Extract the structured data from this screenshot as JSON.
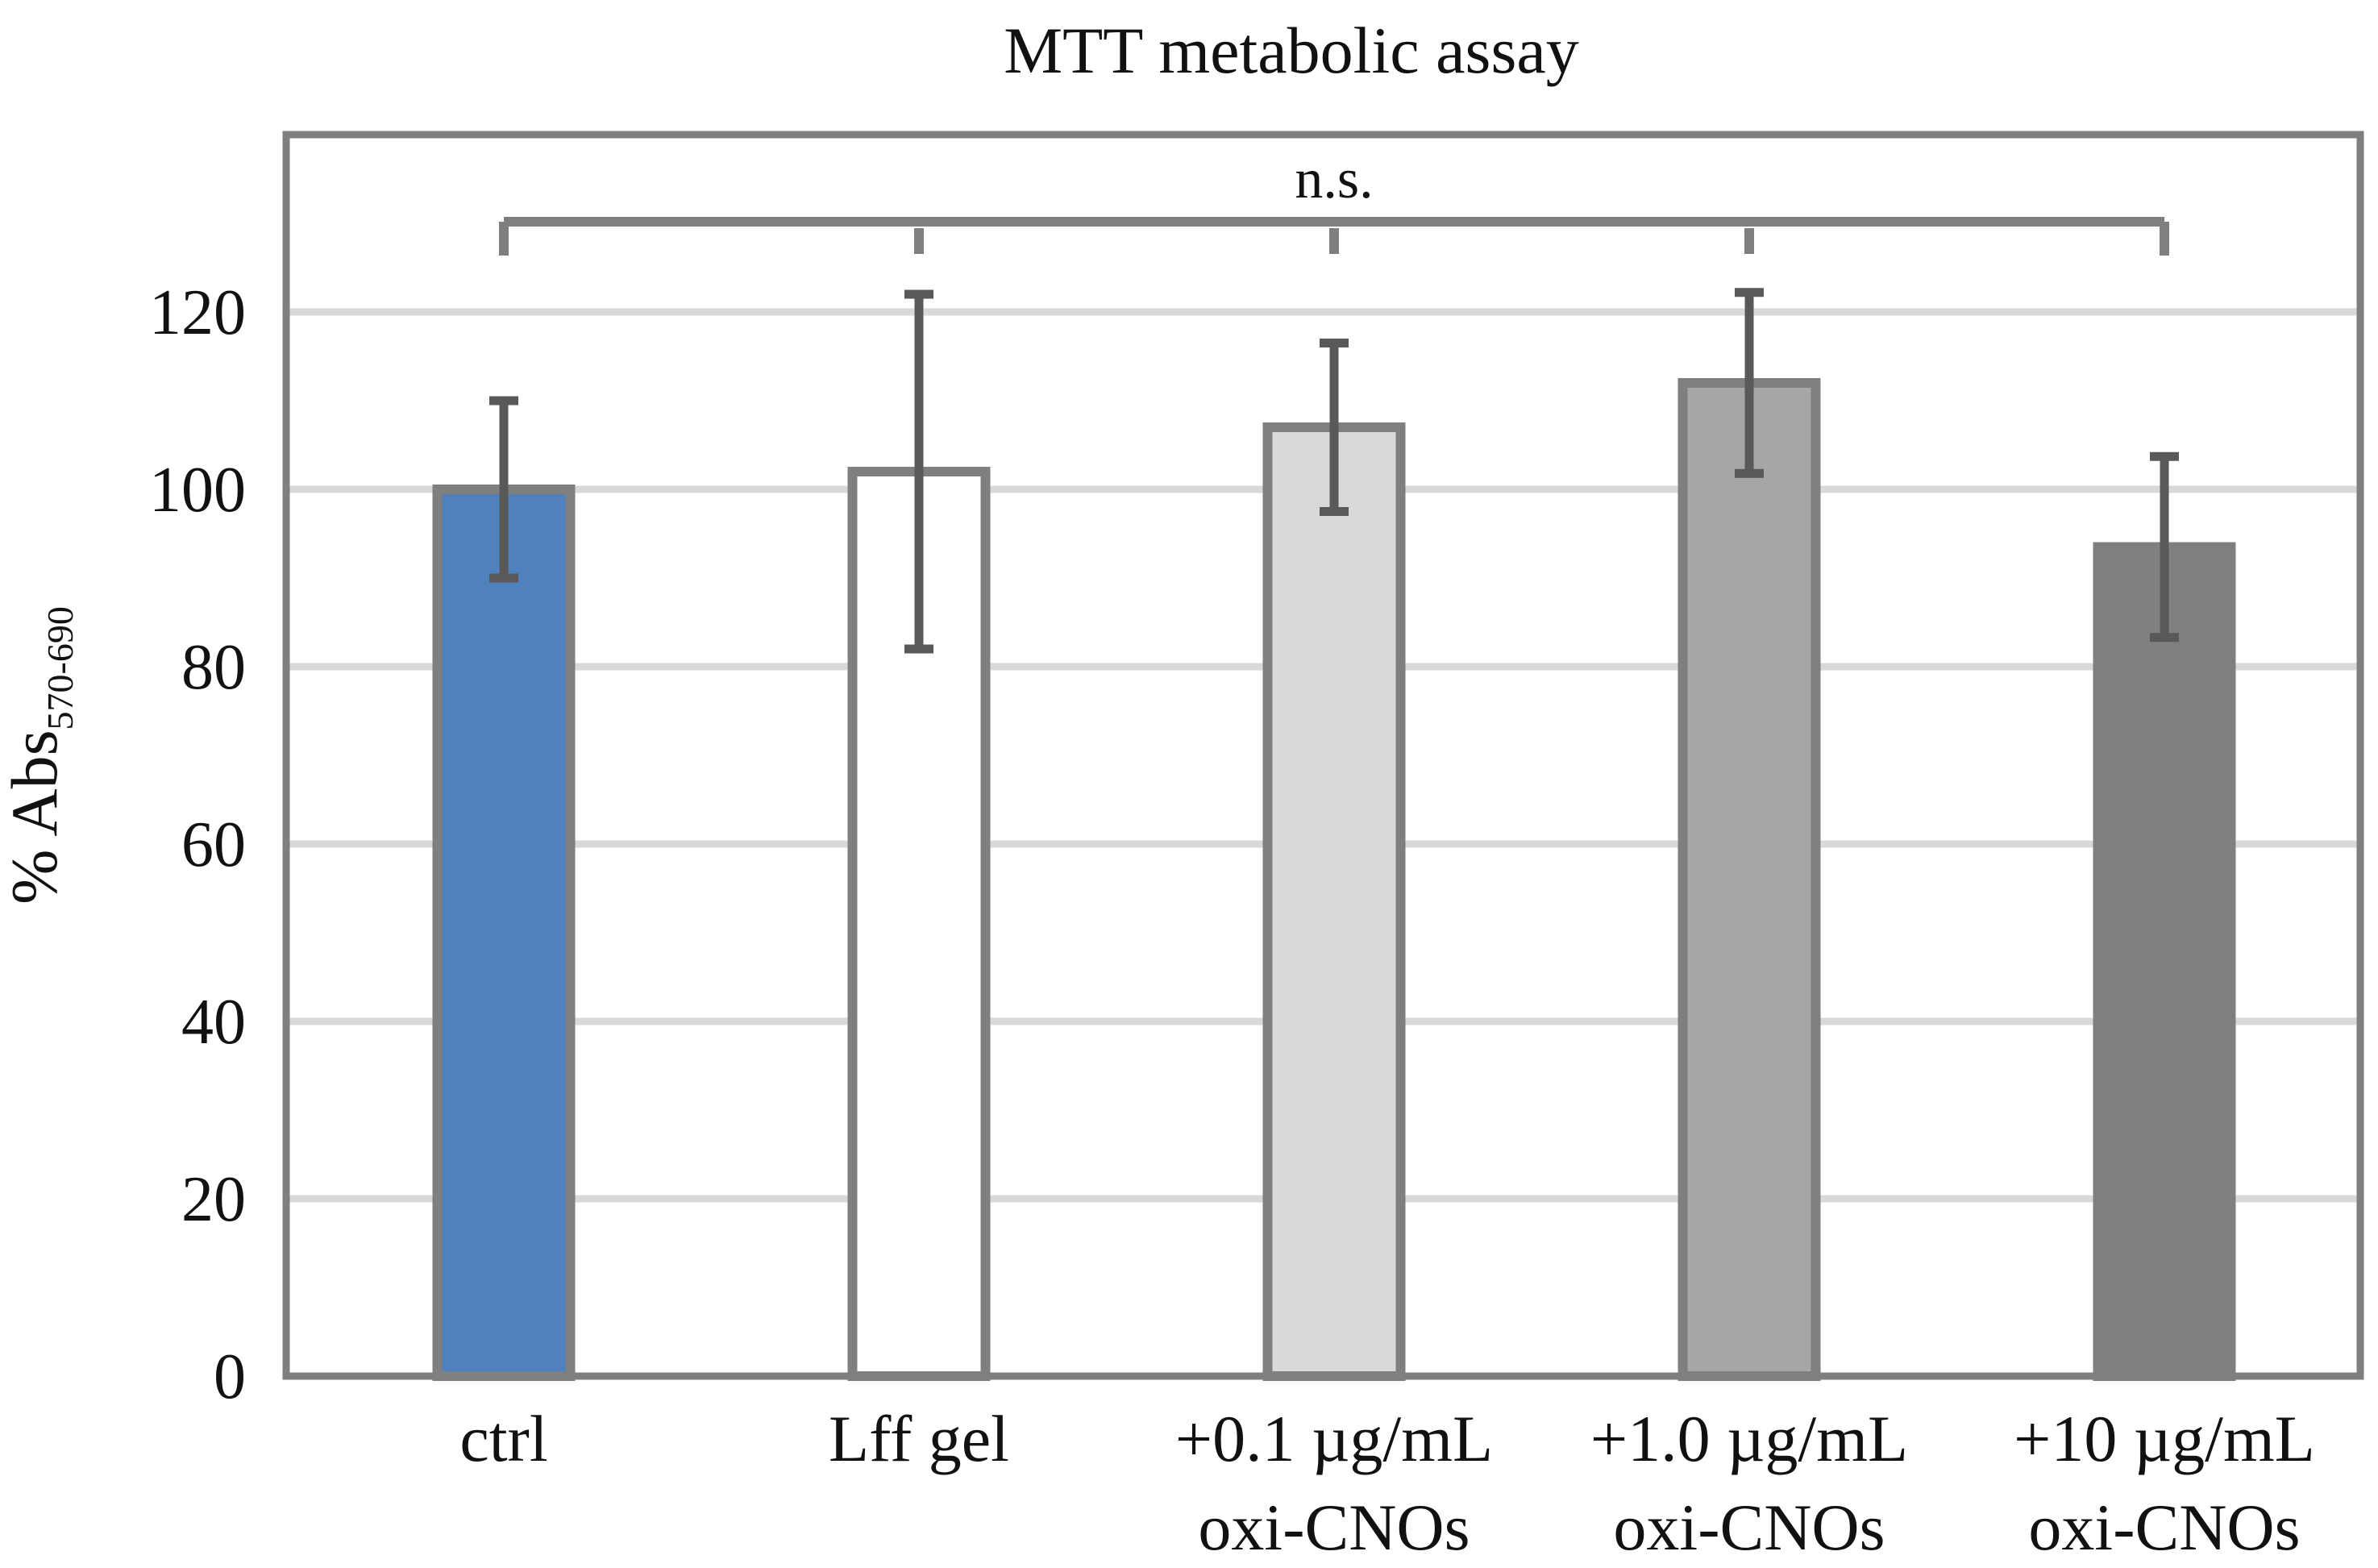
{
  "chart_data": {
    "type": "bar",
    "title": "MTT metabolic assay",
    "ylabel_main": "% Abs",
    "ylabel_sub": "570-690",
    "xlabel": "",
    "ylim": [
      0,
      135
    ],
    "yticks": [
      0,
      20,
      40,
      60,
      80,
      100,
      120
    ],
    "grid": true,
    "categories": [
      {
        "line1": "ctrl",
        "line2": ""
      },
      {
        "line1": "Lff gel",
        "line2": ""
      },
      {
        "line1": "+0.1 µg/mL",
        "line2": "oxi-CNOs"
      },
      {
        "line1": "+1.0 µg/mL",
        "line2": "oxi-CNOs"
      },
      {
        "line1": "+10 µg/mL",
        "line2": "oxi-CNOs"
      }
    ],
    "values": [
      100,
      102,
      107,
      112,
      93.5
    ],
    "errors": [
      10,
      20,
      9.5,
      10.2,
      10.2
    ],
    "colors": [
      "#4f81bd",
      "#ffffff",
      "#d9d9d9",
      "#a6a6a6",
      "#808080"
    ],
    "significance": {
      "label": "n.s.",
      "level": 130
    }
  }
}
